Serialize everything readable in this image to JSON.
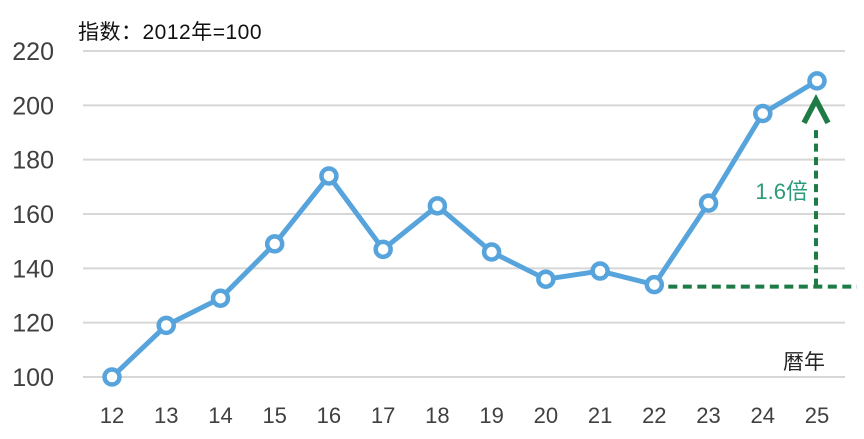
{
  "chart_data": {
    "type": "line",
    "title": "指数：2012年=100",
    "xlabel": "暦年",
    "ylabel": "",
    "categories": [
      "12",
      "13",
      "14",
      "15",
      "16",
      "17",
      "18",
      "19",
      "20",
      "21",
      "22",
      "23",
      "24",
      "25"
    ],
    "series": [
      {
        "name": "指数（2012年=100）",
        "values": [
          100,
          119,
          129,
          149,
          174,
          147,
          163,
          146,
          136,
          139,
          134,
          164,
          197,
          209
        ]
      }
    ],
    "ylim": [
      100,
      220
    ],
    "yticks": [
      100,
      120,
      140,
      160,
      180,
      200,
      220
    ],
    "grid": "horizontal",
    "legend_position": "none",
    "annotation": {
      "label": "1.6倍",
      "from_category": "22",
      "to_category": "25",
      "baseline_value": 134,
      "target_value": 209
    },
    "colors": {
      "line": "#57A4DC",
      "marker_fill": "#FFFFFF",
      "grid": "#D7D7D7",
      "axis_text": "#404040",
      "title_text": "#111111",
      "xlabel_text": "#262626",
      "annotation_line": "#1E7B46",
      "annotation_text": "#2B9A78"
    }
  }
}
